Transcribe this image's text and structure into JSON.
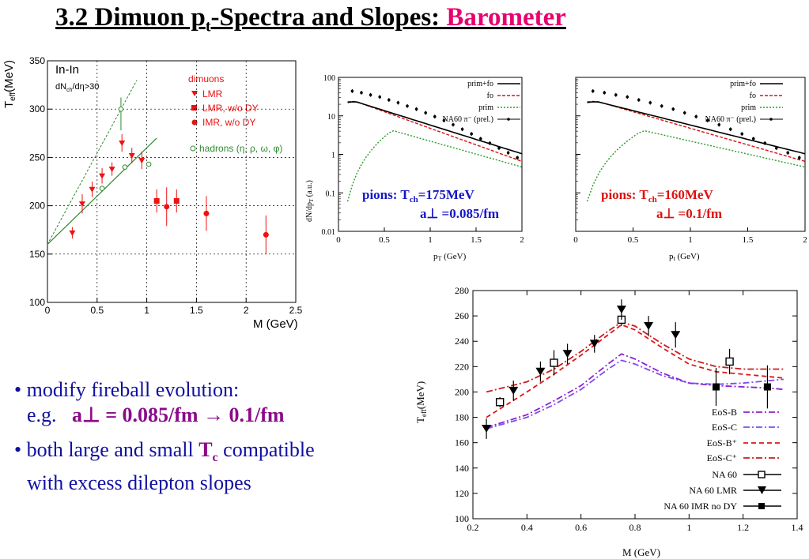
{
  "slide": {
    "title_main": "3.2  Dimuon p",
    "title_sub": "t",
    "title_rest": "-Spectra and Slopes: ",
    "title_accent": "Barometer",
    "accent_color": "#e8006f"
  },
  "bullets": {
    "b1_line1": "modify fireball evolution:",
    "b1_line2_prefix": "e.g.",
    "b1_line2_formula": "a⊥ = 0.085/fm → 0.1/fm",
    "b2_line1_prefix": "both large and small ",
    "b2_line1_T": "T",
    "b2_line1_sub": "c",
    "b2_line1_suffix": " compatible",
    "b2_line2": "with excess dilepton slopes"
  },
  "chart_data": [
    {
      "type": "scatter",
      "ylabel": "T",
      "ylabel_sub": "eff",
      "ylabel_unit": "(MeV)",
      "xlabel": "M (GeV)",
      "xlim": [
        0,
        2.5
      ],
      "ylim": [
        100,
        350
      ],
      "xticks": [
        "0",
        "0.5",
        "1",
        "1.5",
        "2",
        "2.5"
      ],
      "yticks": [
        "100",
        "150",
        "200",
        "250",
        "300",
        "350"
      ],
      "annotations": [
        "In-In",
        "dN",
        "ch",
        "/dη>30"
      ],
      "legend_title": "dimuons",
      "legend": [
        "LMR",
        "LMR, w/o DY",
        "IMR,  w/o DY",
        "hadrons (η, ρ, ω, φ)"
      ],
      "colors": {
        "red": "#ee1111",
        "green": "#2e8b2e"
      },
      "series": [
        {
          "name": "LMR",
          "x": [
            0.25,
            0.35,
            0.45,
            0.55,
            0.65,
            0.75,
            0.85,
            0.95
          ],
          "y": [
            172,
            202,
            217,
            231,
            238,
            265,
            252,
            247
          ]
        },
        {
          "name": "LMR, w/o DY",
          "x": [
            1.1,
            1.3
          ],
          "y": [
            205,
            205
          ]
        },
        {
          "name": "IMR,  w/o DY",
          "x": [
            1.2,
            1.6,
            2.2
          ],
          "y": [
            199,
            192,
            170
          ]
        },
        {
          "name": "hadrons (η, ρ, ω, φ)",
          "x": [
            0.55,
            0.74,
            0.78,
            1.02
          ],
          "y": [
            218,
            300,
            240,
            243
          ]
        }
      ]
    },
    {
      "type": "line",
      "ylabel": "dN/dp",
      "ylabel_sub": "T",
      "ylabel_unit": " (a.u.)",
      "xlabel": "p",
      "xlabel_sub": "T",
      "xlabel_unit": " (GeV)",
      "xlim": [
        0,
        2
      ],
      "ylim": [
        0.01,
        100
      ],
      "yscale": "log",
      "xticks": [
        "0",
        "0.5",
        "1",
        "1.5",
        "2"
      ],
      "yticks": [
        "0.01",
        "0.1",
        "1",
        "10",
        "100"
      ],
      "legend": [
        "prim+fo",
        "fo",
        "prim",
        "NA60 π⁻ (prel.)"
      ],
      "label_color": "#1515c8",
      "label_line1_prefix": "pions: T",
      "label_line1_sub": "ch",
      "label_line1_suffix": "=175MeV",
      "label_line2": "a⊥ =0.085/fm",
      "data_x": [
        0.15,
        0.25,
        0.35,
        0.45,
        0.55,
        0.65,
        0.75,
        0.85,
        0.95,
        1.05,
        1.15,
        1.25,
        1.35,
        1.45,
        1.55,
        1.65,
        1.75,
        1.85,
        1.95
      ],
      "data_y": [
        44,
        40,
        35,
        31,
        26,
        22,
        18,
        15,
        12,
        9.6,
        7.6,
        5.9,
        4.5,
        3.4,
        2.55,
        1.95,
        1.45,
        1.1,
        0.82
      ]
    },
    {
      "type": "line",
      "ylabel": "",
      "xlabel": "p",
      "xlabel_sub": "t",
      "xlabel_unit": " (GeV)",
      "xlim": [
        0,
        2
      ],
      "ylim": [
        0.01,
        100
      ],
      "yscale": "log",
      "xticks": [
        "0",
        "0.5",
        "1",
        "1.5",
        "2"
      ],
      "legend": [
        "prim+fo",
        "fo",
        "prim",
        "NA60 π⁻ (prel.)"
      ],
      "label_color": "#dd1111",
      "label_line1_prefix": "pions: T",
      "label_line1_sub": "ch",
      "label_line1_suffix": "=160MeV",
      "label_line2": "a⊥ =0.1/fm",
      "data_x": [
        0.15,
        0.25,
        0.35,
        0.45,
        0.55,
        0.65,
        0.75,
        0.85,
        0.95,
        1.05,
        1.15,
        1.25,
        1.35,
        1.45,
        1.55,
        1.65,
        1.75,
        1.85,
        1.95
      ],
      "data_y": [
        44,
        40,
        35,
        31,
        26,
        22,
        18,
        15,
        12,
        9.6,
        7.6,
        5.9,
        4.5,
        3.4,
        2.55,
        1.95,
        1.45,
        1.1,
        0.82
      ]
    },
    {
      "type": "line",
      "ylabel": "T",
      "ylabel_sub": "eff",
      "ylabel_unit": "(MeV)",
      "xlabel": "M (GeV)",
      "xlim": [
        0.2,
        1.4
      ],
      "ylim": [
        100,
        280
      ],
      "xticks": [
        "0.2",
        "0.4",
        "0.6",
        "0.8",
        "1",
        "1.2",
        "1.4"
      ],
      "yticks": [
        "100",
        "120",
        "140",
        "160",
        "180",
        "200",
        "220",
        "240",
        "260",
        "280"
      ],
      "legend": [
        "EoS-B",
        "EoS-C",
        "EoS-B⁺",
        "EoS-C⁺",
        "NA 60",
        "NA 60 LMR",
        "NA 60 IMR no DY"
      ],
      "series": [
        {
          "name": "EoS-B",
          "x": [
            0.25,
            0.4,
            0.5,
            0.6,
            0.7,
            0.75,
            0.8,
            0.9,
            1.0,
            1.1,
            1.2,
            1.3,
            1.35
          ],
          "y": [
            172,
            182,
            193,
            205,
            222,
            230,
            226,
            215,
            207,
            205,
            204,
            203,
            202
          ]
        },
        {
          "name": "EoS-C",
          "x": [
            0.25,
            0.4,
            0.5,
            0.6,
            0.7,
            0.75,
            0.8,
            0.9,
            1.0,
            1.1,
            1.2,
            1.3,
            1.35
          ],
          "y": [
            171,
            180,
            190,
            202,
            218,
            225,
            222,
            213,
            207,
            206,
            207,
            209,
            210
          ]
        },
        {
          "name": "EoS-B⁺",
          "x": [
            0.25,
            0.4,
            0.5,
            0.6,
            0.7,
            0.75,
            0.8,
            0.9,
            1.0,
            1.1,
            1.2,
            1.3,
            1.35
          ],
          "y": [
            180,
            200,
            214,
            229,
            245,
            253,
            249,
            235,
            222,
            216,
            214,
            212,
            211
          ]
        },
        {
          "name": "EoS-C⁺",
          "x": [
            0.25,
            0.4,
            0.5,
            0.6,
            0.7,
            0.75,
            0.8,
            0.9,
            1.0,
            1.1,
            1.2,
            1.3,
            1.35
          ],
          "y": [
            200,
            208,
            218,
            232,
            248,
            255,
            252,
            238,
            226,
            220,
            218,
            218,
            218
          ]
        },
        {
          "name": "NA 60",
          "x": [
            0.3,
            0.5,
            0.75,
            1.15
          ],
          "y": [
            192,
            223,
            257,
            224
          ]
        },
        {
          "name": "NA 60 LMR",
          "x": [
            0.25,
            0.35,
            0.45,
            0.55,
            0.65,
            0.75,
            0.85,
            0.95
          ],
          "y": [
            171,
            201,
            216,
            230,
            238,
            265,
            252,
            245
          ]
        },
        {
          "name": "NA 60 IMR no DY",
          "x": [
            1.1,
            1.29
          ],
          "y": [
            204,
            204
          ]
        }
      ]
    }
  ]
}
